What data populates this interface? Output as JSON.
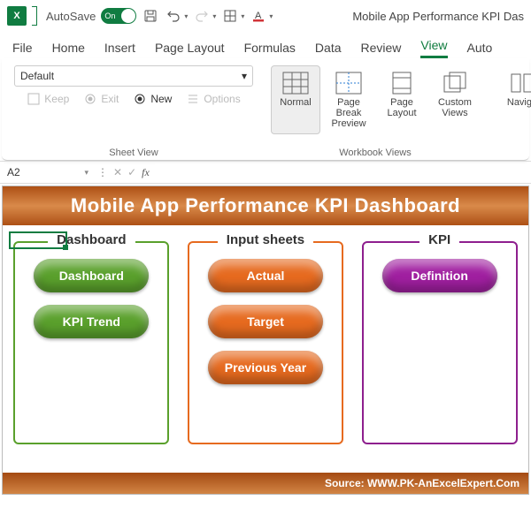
{
  "app": {
    "autosave_label": "AutoSave",
    "autosave_state": "On",
    "document_title": "Mobile App Performance KPI Das"
  },
  "tabs": {
    "file": "File",
    "home": "Home",
    "insert": "Insert",
    "page_layout": "Page Layout",
    "formulas": "Formulas",
    "data": "Data",
    "review": "Review",
    "view": "View",
    "automate": "Auto"
  },
  "ribbon": {
    "sheet_view": {
      "dropdown_value": "Default",
      "keep": "Keep",
      "exit": "Exit",
      "new": "New",
      "options": "Options",
      "group_label": "Sheet View"
    },
    "workbook_views": {
      "normal": "Normal",
      "page_break": "Page Break Preview",
      "page_layout": "Page Layout",
      "custom": "Custom Views",
      "group_label": "Workbook Views"
    },
    "navigation": "Naviga"
  },
  "namebox": "A2",
  "dashboard": {
    "title": "Mobile App Performance KPI Dashboard",
    "panels": [
      {
        "title": "Dashboard",
        "border_color": "#5aa02c",
        "pill_color": "#5aa02c",
        "buttons": [
          "Dashboard",
          "KPI Trend"
        ]
      },
      {
        "title": "Input sheets",
        "border_color": "#e66a1f",
        "pill_color": "#e66a1f",
        "buttons": [
          "Actual",
          "Target",
          "Previous Year"
        ]
      },
      {
        "title": "KPI",
        "border_color": "#8e1f8e",
        "pill_color": "#a01fa0",
        "buttons": [
          "Definition"
        ]
      }
    ],
    "source": "Source: WWW.PK-AnExcelExpert.Com"
  },
  "colors": {
    "excel_green": "#107c41",
    "font_red": "#d13438"
  }
}
